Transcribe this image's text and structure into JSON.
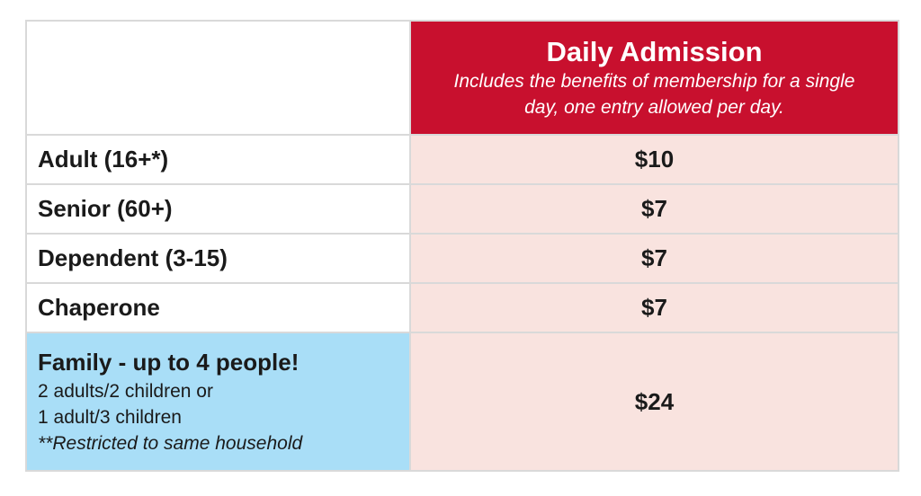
{
  "table": {
    "header": {
      "title": "Daily Admission",
      "subtitle": "Includes the benefits of membership for a single day, one entry allowed per day."
    },
    "rows": [
      {
        "label": "Adult (16+*)",
        "price": "$10"
      },
      {
        "label": "Senior (60+)",
        "price": "$7"
      },
      {
        "label": "Dependent (3-15)",
        "price": "$7"
      },
      {
        "label": "Chaperone",
        "price": "$7"
      }
    ],
    "family": {
      "title": "Family - up to 4 people!",
      "line1": "2 adults/2 children or",
      "line2": "1 adult/3 children",
      "note": "**Restricted to same household",
      "price": "$24"
    }
  },
  "colors": {
    "header_bg": "#c8102e",
    "price_bg": "#f9e3df",
    "family_bg": "#a9def7",
    "border": "#d9d9d9"
  }
}
